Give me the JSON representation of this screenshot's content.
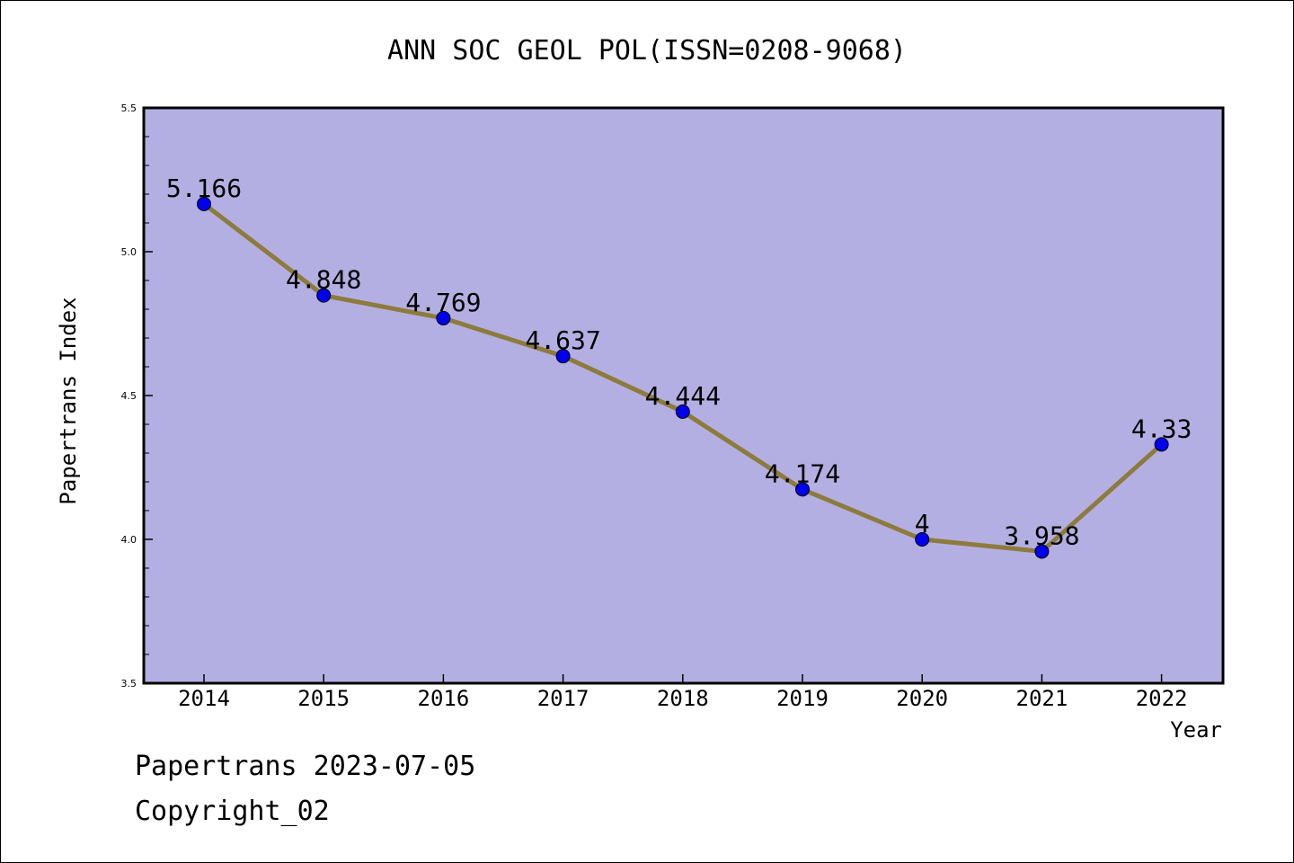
{
  "chart_data": {
    "type": "line",
    "title": "ANN SOC GEOL POL(ISSN=0208-9068)",
    "xlabel": "Year",
    "ylabel": "Papertrans Index",
    "categories": [
      "2014",
      "2015",
      "2016",
      "2017",
      "2018",
      "2019",
      "2020",
      "2021",
      "2022"
    ],
    "series": [
      {
        "values": [
          5.166,
          4.848,
          4.769,
          4.637,
          4.444,
          4.174,
          4.0,
          3.958,
          4.33
        ],
        "labels": [
          "5.166",
          "4.848",
          "4.769",
          "4.637",
          "4.444",
          "4.174",
          "4",
          "3.958",
          "4.33"
        ]
      }
    ],
    "ylim": [
      3.5,
      5.5
    ],
    "yticks": [
      "3.5",
      "4.0",
      "4.5",
      "5.0",
      "5.5"
    ],
    "grid": false,
    "colors": {
      "plot_background": "#b4afe2",
      "line": "#8c7b3c",
      "marker": "#0000ee"
    }
  },
  "footer": {
    "line1": "Papertrans 2023-07-05",
    "line2": "Copyright_02"
  }
}
